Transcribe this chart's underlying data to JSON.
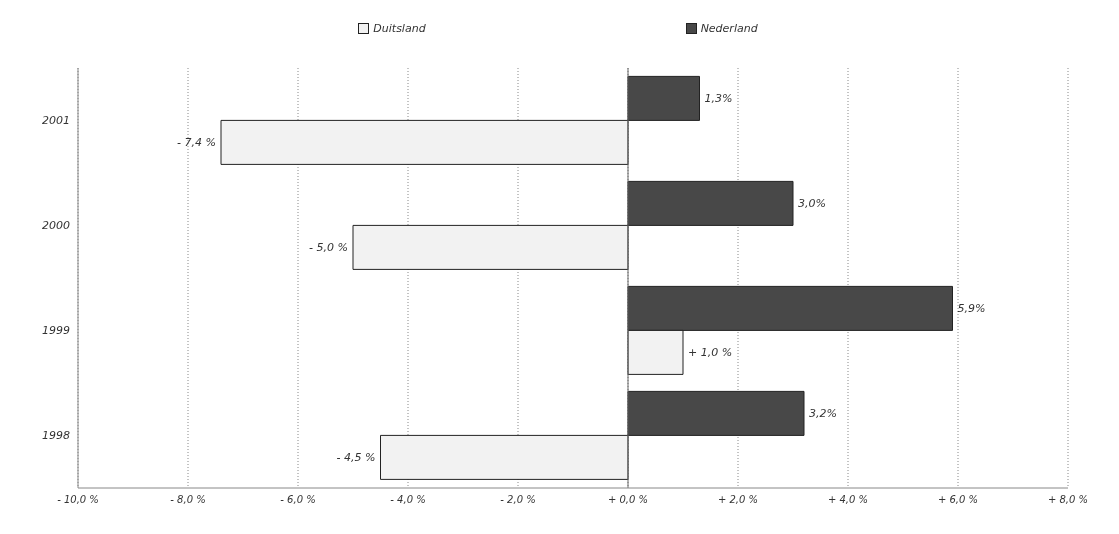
{
  "chart_data": {
    "type": "bar",
    "orientation": "horizontal",
    "categories": [
      "2001",
      "2000",
      "1999",
      "1998"
    ],
    "series": [
      {
        "name": "Duitsland",
        "color": "#f2f2f2",
        "values": [
          -7.4,
          -5.0,
          1.0,
          -4.5
        ],
        "value_labels": [
          "- 7,4 %",
          "- 5,0 %",
          "+ 1,0 %",
          "- 4,5 %"
        ]
      },
      {
        "name": "Nederland",
        "color": "#484848",
        "values": [
          1.3,
          3.0,
          5.9,
          3.2
        ],
        "value_labels": [
          "1,3%",
          "3,0%",
          "5,9%",
          "3,2%"
        ]
      }
    ],
    "xlim": [
      -10,
      8
    ],
    "xticks": [
      {
        "value": -10,
        "label": "- 10,0 %"
      },
      {
        "value": -8,
        "label": "- 8,0 %"
      },
      {
        "value": -6,
        "label": "- 6,0 %"
      },
      {
        "value": -4,
        "label": "- 4,0 %"
      },
      {
        "value": -2,
        "label": "- 2,0 %"
      },
      {
        "value": 0,
        "label": "+ 0,0 %"
      },
      {
        "value": 2,
        "label": "+ 2,0 %"
      },
      {
        "value": 4,
        "label": "+ 4,0 %"
      },
      {
        "value": 6,
        "label": "+ 6,0 %"
      },
      {
        "value": 8,
        "label": "+ 8,0 %"
      }
    ],
    "grid": "x",
    "legend": "top"
  }
}
